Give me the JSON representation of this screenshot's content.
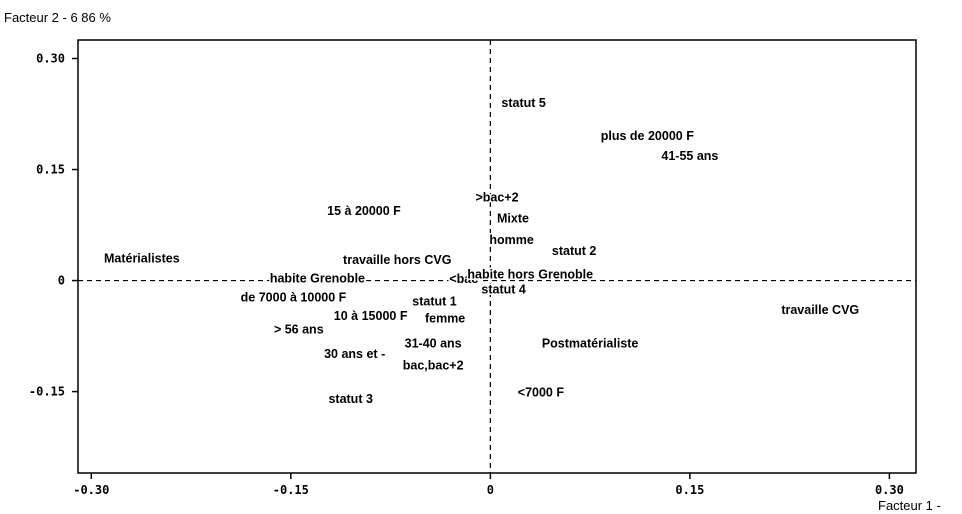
{
  "chart_data": {
    "type": "scatter",
    "xlabel": "Facteur 1  -",
    "ylabel": "Facteur 2  -  6 86 %",
    "xlim": [
      -0.31,
      0.32
    ],
    "ylim": [
      -0.26,
      0.325
    ],
    "x_ticks": [
      -0.3,
      -0.15,
      0,
      0.15,
      0.3
    ],
    "x_tick_labels": [
      "-0.30",
      "-0.15",
      "0",
      "0.15",
      "0.30"
    ],
    "y_ticks": [
      0.3,
      0.15,
      0,
      -0.15
    ],
    "y_tick_labels": [
      "0.30",
      "0.15",
      "0",
      "-0.15"
    ],
    "grid": false,
    "reference_lines": [
      "x=0",
      "y=0"
    ],
    "points": [
      {
        "label": "statut 5",
        "x": 0.025,
        "y": 0.24
      },
      {
        "label": "plus de 20000 F",
        "x": 0.118,
        "y": 0.195
      },
      {
        "label": "41-55 ans",
        "x": 0.15,
        "y": 0.168
      },
      {
        "label": ">bac+2",
        "x": 0.005,
        "y": 0.112
      },
      {
        "label": "15 à 20000 F",
        "x": -0.095,
        "y": 0.094
      },
      {
        "label": "Mixte",
        "x": 0.017,
        "y": 0.084
      },
      {
        "label": "homme",
        "x": 0.016,
        "y": 0.055
      },
      {
        "label": "statut 2",
        "x": 0.063,
        "y": 0.04
      },
      {
        "label": "Matérialistes",
        "x": -0.262,
        "y": 0.03
      },
      {
        "label": "travaille hors CVG",
        "x": -0.07,
        "y": 0.028
      },
      {
        "label": "habite Grenoble",
        "x": -0.13,
        "y": 0.003
      },
      {
        "label": "<bac",
        "x": -0.02,
        "y": 0.002
      },
      {
        "label": "habite hors Grenoble",
        "x": 0.03,
        "y": 0.008
      },
      {
        "label": "statut 4",
        "x": 0.01,
        "y": -0.012
      },
      {
        "label": "de 7000 à 10000 F",
        "x": -0.148,
        "y": -0.023
      },
      {
        "label": "statut 1",
        "x": -0.042,
        "y": -0.028
      },
      {
        "label": "travaille CVG",
        "x": 0.248,
        "y": -0.04
      },
      {
        "label": "10 à 15000 F",
        "x": -0.09,
        "y": -0.048
      },
      {
        "label": "femme",
        "x": -0.034,
        "y": -0.051
      },
      {
        "label": "> 56 ans",
        "x": -0.144,
        "y": -0.066
      },
      {
        "label": "31-40 ans",
        "x": -0.043,
        "y": -0.085
      },
      {
        "label": "Postmatérialiste",
        "x": 0.075,
        "y": -0.085
      },
      {
        "label": "30 ans et -",
        "x": -0.102,
        "y": -0.099
      },
      {
        "label": "bac,bac+2",
        "x": -0.043,
        "y": -0.115
      },
      {
        "label": "<7000 F",
        "x": 0.038,
        "y": -0.151
      },
      {
        "label": "statut 3",
        "x": -0.105,
        "y": -0.16
      }
    ]
  }
}
